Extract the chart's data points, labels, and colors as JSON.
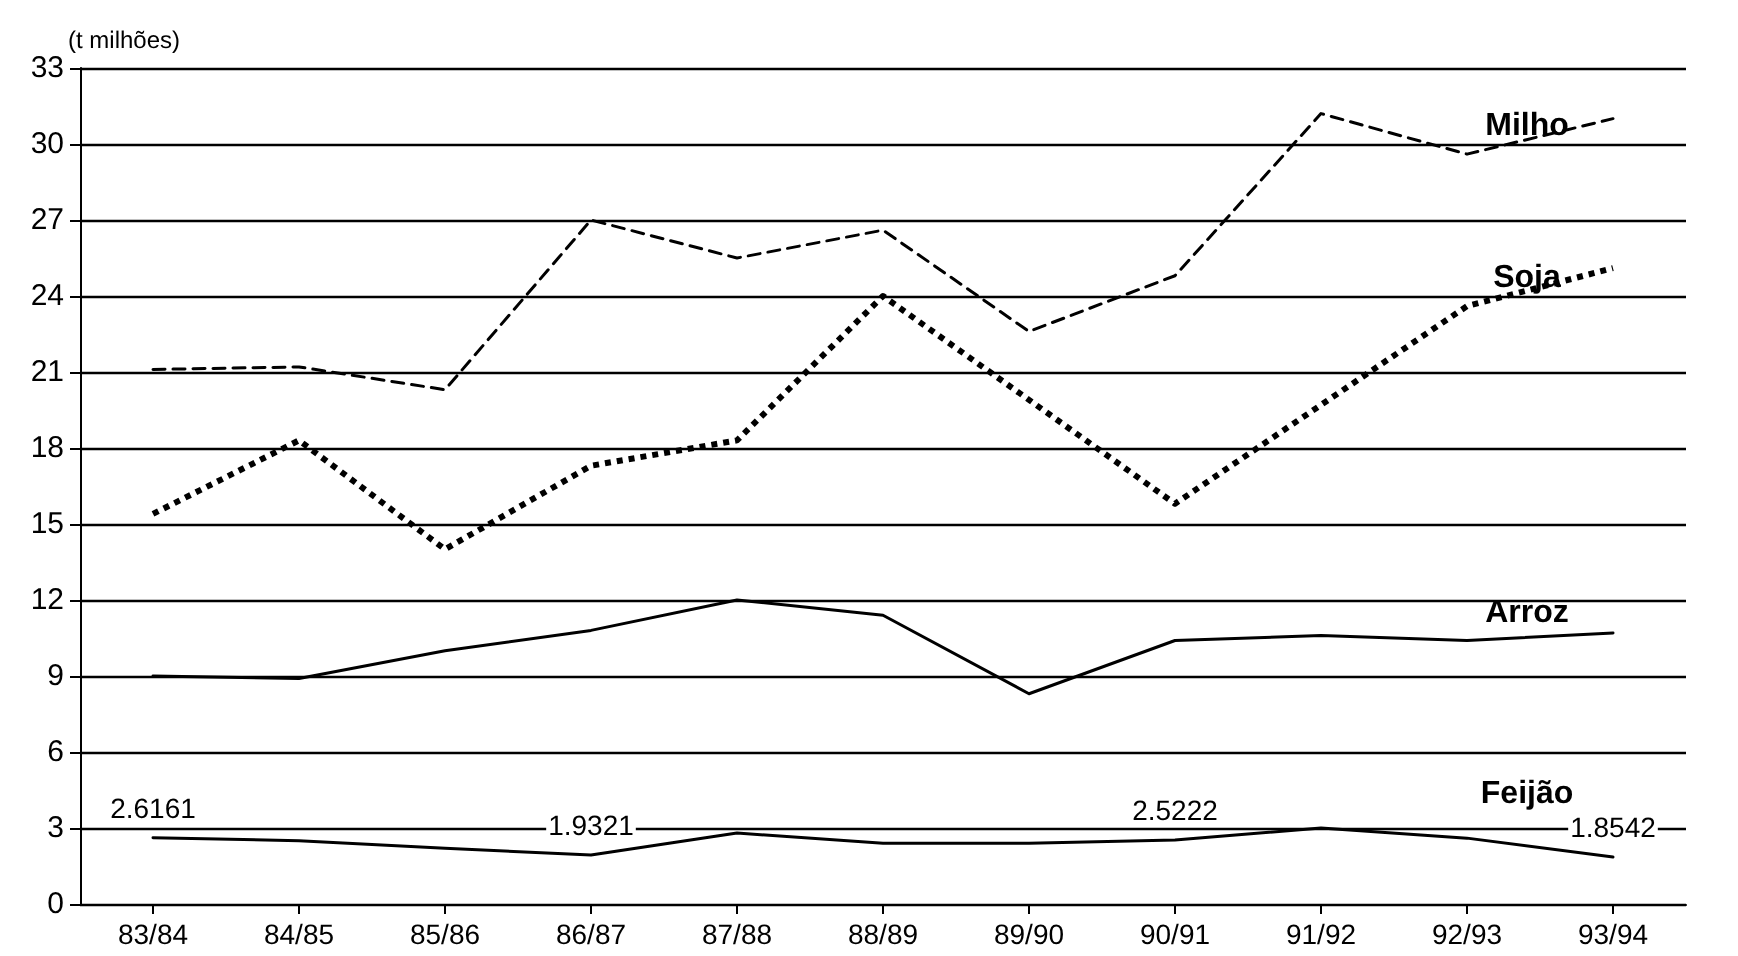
{
  "chart_data": {
    "type": "line",
    "ylabel": "(t milhões)",
    "categories": [
      "83/84",
      "84/85",
      "85/86",
      "86/87",
      "87/88",
      "88/89",
      "89/90",
      "90/91",
      "91/92",
      "92/93",
      "93/94"
    ],
    "series": [
      {
        "name": "Milho",
        "color": "#000000",
        "line_style": "dashed",
        "values": [
          21.1,
          21.2,
          20.3,
          27.0,
          25.5,
          26.6,
          22.6,
          24.8,
          31.2,
          29.6,
          31.0
        ]
      },
      {
        "name": "Soja",
        "color": "#000000",
        "line_style": "dotted",
        "values": [
          15.4,
          18.3,
          14.0,
          17.3,
          18.3,
          24.0,
          19.9,
          15.8,
          19.7,
          23.6,
          25.1
        ]
      },
      {
        "name": "Arroz",
        "color": "#000000",
        "line_style": "solid",
        "values": [
          9.0,
          8.9,
          10.0,
          10.8,
          12.0,
          11.4,
          8.3,
          10.4,
          10.6,
          10.4,
          10.7
        ]
      },
      {
        "name": "Feijão",
        "color": "#000000",
        "line_style": "solid",
        "values": [
          2.6161,
          2.5,
          2.2,
          1.9321,
          2.8,
          2.4,
          2.4,
          2.5222,
          3.0,
          2.6,
          1.8542
        ],
        "value_labels": [
          "2.6161",
          null,
          null,
          "1.9321",
          null,
          null,
          null,
          "2.5222",
          null,
          null,
          "1.8542"
        ]
      }
    ],
    "ylim": [
      0,
      33
    ],
    "yticks": [
      0,
      3,
      6,
      9,
      12,
      15,
      18,
      21,
      24,
      27,
      30,
      33
    ],
    "grid": "y",
    "legend": false,
    "marker": "none"
  }
}
